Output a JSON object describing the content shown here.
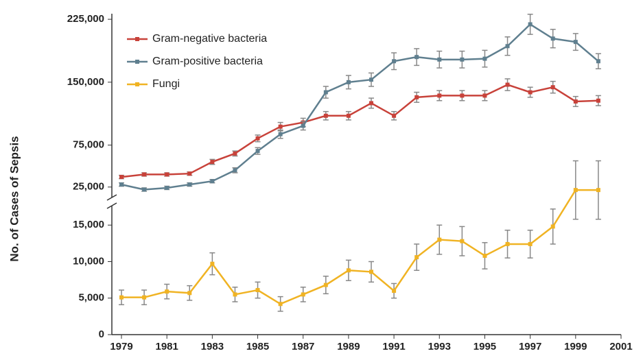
{
  "chart_data": [
    {
      "type": "line",
      "x": [
        1979,
        1980,
        1981,
        1982,
        1983,
        1984,
        1985,
        1986,
        1987,
        1988,
        1989,
        1990,
        1991,
        1992,
        1993,
        1994,
        1995,
        1996,
        1997,
        1998,
        1999,
        2000
      ],
      "ylim": [
        15000,
        230000
      ],
      "yticks": [
        {
          "value": 25000,
          "label": "25,000"
        },
        {
          "value": 75000,
          "label": "75,000"
        },
        {
          "value": 150000,
          "label": "150,000"
        },
        {
          "value": 225000,
          "label": "225,000"
        }
      ],
      "series": [
        {
          "name": "Gram-negative bacteria",
          "color": "#c8423a",
          "values": [
            37000,
            40000,
            40000,
            41000,
            55000,
            65000,
            83000,
            97000,
            102000,
            110000,
            110000,
            125000,
            110000,
            132000,
            134000,
            134000,
            134000,
            147000,
            138000,
            144000,
            127000,
            128000
          ],
          "errors": [
            2000,
            2000,
            2000,
            2000,
            3000,
            3000,
            4000,
            5000,
            5000,
            5000,
            5000,
            6000,
            5000,
            6000,
            6000,
            6000,
            6000,
            7000,
            6000,
            7000,
            6000,
            6000
          ]
        },
        {
          "name": "Gram-positive bacteria",
          "color": "#5f7f8f",
          "values": [
            28000,
            22000,
            24000,
            28000,
            32000,
            45000,
            68000,
            88000,
            98000,
            138000,
            150000,
            153000,
            175000,
            180000,
            177000,
            177000,
            178000,
            193000,
            219000,
            202000,
            198000,
            175000
          ],
          "errors": [
            2000,
            2000,
            2000,
            2000,
            2000,
            3000,
            4000,
            5000,
            5000,
            7000,
            8000,
            8000,
            10000,
            10000,
            10000,
            10000,
            10000,
            11000,
            12000,
            11000,
            10000,
            9000
          ]
        }
      ]
    },
    {
      "type": "line",
      "ylabel": "No. of Cases of Sepsis",
      "x": [
        1979,
        1980,
        1981,
        1982,
        1983,
        1984,
        1985,
        1986,
        1987,
        1988,
        1989,
        1990,
        1991,
        1992,
        1993,
        1994,
        1995,
        1996,
        1997,
        1998,
        1999,
        2000
      ],
      "xlim": [
        1979,
        2001
      ],
      "xticks": [
        1979,
        1981,
        1983,
        1985,
        1987,
        1989,
        1991,
        1993,
        1995,
        1997,
        1999,
        2001
      ],
      "ylim": [
        0,
        20000
      ],
      "yticks": [
        0,
        {
          "value": 5000,
          "label": "5,000"
        },
        {
          "value": 10000,
          "label": "10,000"
        },
        {
          "value": 15000,
          "label": "15,000"
        }
      ],
      "series": [
        {
          "name": "Fungi",
          "color": "#f0b323",
          "values": [
            5100,
            5100,
            5900,
            5700,
            9700,
            5500,
            6100,
            4200,
            5500,
            6800,
            8800,
            8600,
            6000,
            10600,
            13000,
            12800,
            10800,
            12400,
            12400,
            14800,
            19800,
            19800
          ],
          "errors": [
            1000,
            1000,
            1000,
            1000,
            1500,
            1000,
            1100,
            1000,
            1000,
            1200,
            1400,
            1400,
            1000,
            1800,
            2000,
            2000,
            1800,
            1900,
            1900,
            2400,
            4000,
            4000
          ]
        }
      ]
    }
  ]
}
